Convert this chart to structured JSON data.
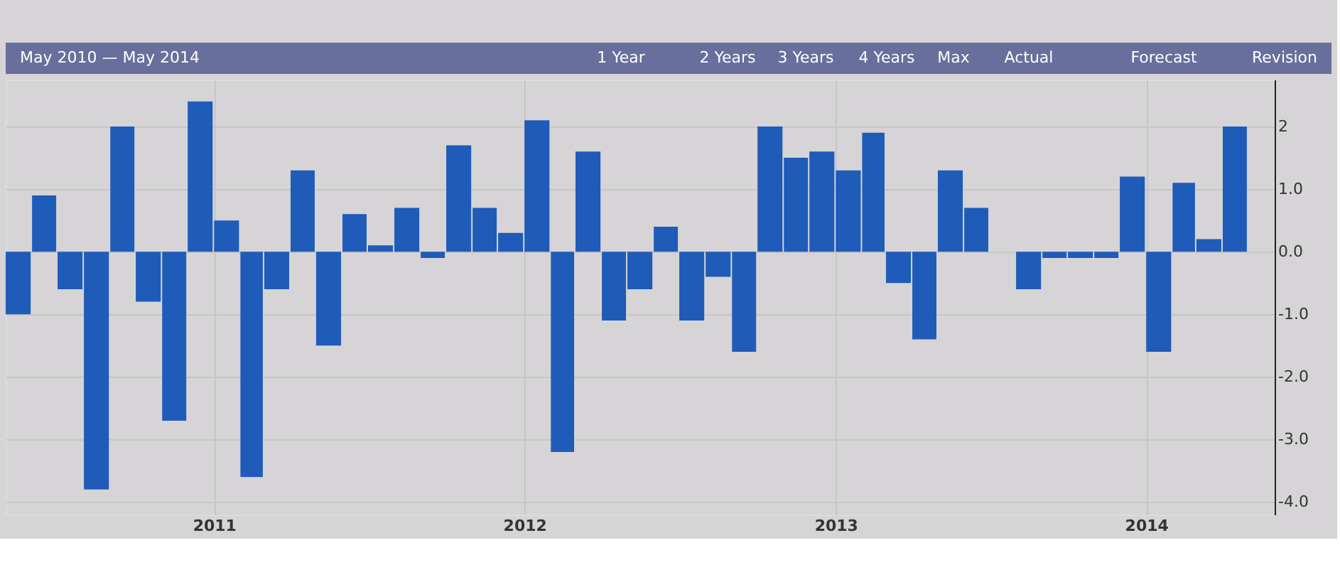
{
  "chart_data": {
    "type": "bar",
    "title": "May 2010 — May 2014",
    "annotations": [
      "1 Year",
      "2 Years",
      "3 Years",
      "4 Years",
      "Max",
      "Actual",
      "Forecast",
      "Revision"
    ],
    "x": [
      "2010-05-15",
      "2010-06-15",
      "2010-07-15",
      "2010-08-15",
      "2010-09-15",
      "2010-10-15",
      "2010-11-15",
      "2010-12-15",
      "2011-01-15",
      "2011-02-15",
      "2011-03-15",
      "2011-04-15",
      "2011-05-15",
      "2011-06-15",
      "2011-07-15",
      "2011-08-15",
      "2011-09-15",
      "2011-10-15",
      "2011-11-15",
      "2011-12-15",
      "2012-01-15",
      "2012-02-15",
      "2012-03-15",
      "2012-04-15",
      "2012-05-15",
      "2012-06-15",
      "2012-07-15",
      "2012-08-15",
      "2012-09-15",
      "2012-10-15",
      "2012-11-15",
      "2012-12-15",
      "2013-01-15",
      "2013-02-15",
      "2013-03-15",
      "2013-04-15",
      "2013-05-15",
      "2013-06-15",
      "2013-07-15",
      "2013-08-15",
      "2013-09-15",
      "2013-10-15",
      "2013-11-15",
      "2013-12-15",
      "2014-01-15",
      "2014-02-15",
      "2014-03-15",
      "2014-04-15"
    ],
    "values": [
      -1.0,
      0.9,
      -0.6,
      -3.8,
      2.0,
      -0.8,
      -2.7,
      2.4,
      0.5,
      -3.6,
      -0.6,
      1.3,
      -1.5,
      0.6,
      0.1,
      0.7,
      -0.1,
      1.7,
      0.7,
      0.3,
      2.1,
      -3.2,
      1.6,
      -1.1,
      -0.6,
      0.4,
      -1.1,
      -0.4,
      -1.6,
      2.0,
      1.5,
      1.6,
      1.3,
      1.9,
      -0.5,
      -1.4,
      1.3,
      0.7,
      0.0,
      -0.6,
      -0.1,
      -0.1,
      -0.1,
      1.2,
      -1.6,
      1.1,
      0.2,
      2.0
    ],
    "color": "#1f5bb8",
    "xlim": [
      "2010-05",
      "2014-06"
    ],
    "xticks": [
      "2011",
      "2012",
      "2013",
      "2014"
    ],
    "ylim": [
      -4.2,
      2.75
    ],
    "yticks": [
      {
        "value": 2,
        "label": "2"
      },
      {
        "value": 1,
        "label": "1.0"
      },
      {
        "value": 0,
        "label": "0.0"
      },
      {
        "value": -1,
        "label": "-1.0"
      },
      {
        "value": -2,
        "label": "-2.0"
      },
      {
        "value": -3,
        "label": "-3.0"
      },
      {
        "value": -4,
        "label": "-4.0"
      }
    ],
    "grid": true
  }
}
